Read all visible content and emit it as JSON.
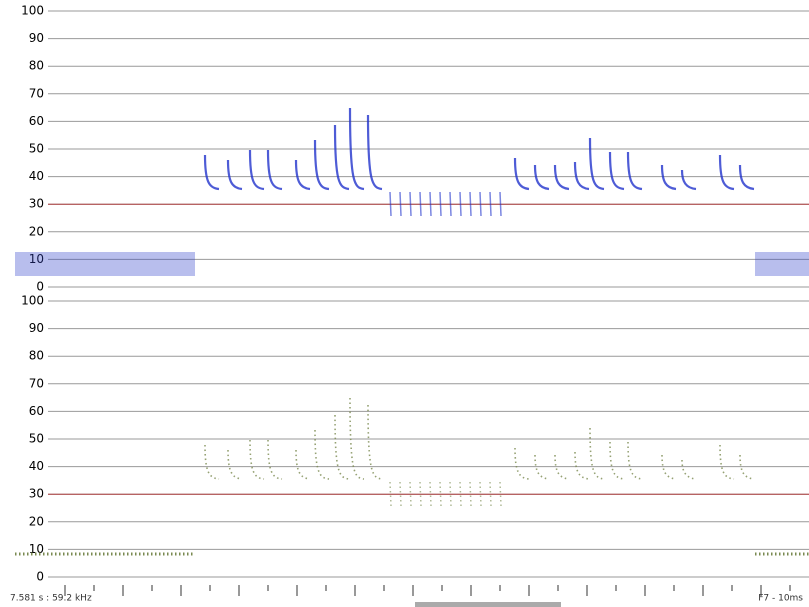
{
  "panels": [
    {
      "yticks": [
        0,
        10,
        20,
        30,
        40,
        50,
        60,
        70,
        80,
        90,
        100
      ],
      "threshold": 30
    },
    {
      "yticks": [
        0,
        10,
        20,
        30,
        40,
        50,
        60,
        70,
        80,
        90,
        100
      ],
      "threshold": 30
    }
  ],
  "status": {
    "left": "7.581 s : 59.2 kHz",
    "right": "F7 - 10ms"
  }
}
